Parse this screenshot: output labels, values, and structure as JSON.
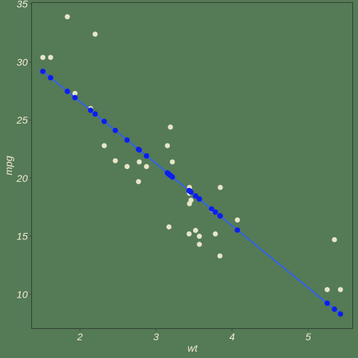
{
  "chart_data": {
    "type": "scatter",
    "title": "",
    "xlabel": "wt",
    "ylabel": "mpg",
    "xlim": [
      1.37,
      5.58
    ],
    "ylim": [
      7.08,
      35.1
    ],
    "xticks": [
      2,
      3,
      4,
      5
    ],
    "yticks": [
      10,
      15,
      20,
      25,
      30,
      35
    ],
    "grid": false,
    "legend": "none",
    "colors": {
      "background": "#557a56",
      "panel_border": "#2f3f2f",
      "observed": "#e8e6c8",
      "fitted": "#0a1ef0",
      "fit_line": "#2f62f0",
      "text": "#f2ecd6",
      "axis": "#3a4a3a"
    },
    "series": [
      {
        "kind": "observed",
        "points": [
          [
            2.62,
            21.0
          ],
          [
            2.875,
            21.0
          ],
          [
            2.32,
            22.8
          ],
          [
            3.215,
            21.4
          ],
          [
            3.44,
            18.7
          ],
          [
            3.46,
            18.1
          ],
          [
            3.57,
            14.3
          ],
          [
            3.19,
            24.4
          ],
          [
            3.15,
            22.8
          ],
          [
            3.44,
            19.2
          ],
          [
            3.44,
            17.8
          ],
          [
            4.07,
            16.4
          ],
          [
            3.73,
            17.3
          ],
          [
            3.78,
            15.2
          ],
          [
            5.25,
            10.4
          ],
          [
            5.424,
            10.4
          ],
          [
            5.345,
            14.7
          ],
          [
            2.2,
            32.4
          ],
          [
            1.615,
            30.4
          ],
          [
            1.835,
            33.9
          ],
          [
            2.465,
            21.5
          ],
          [
            3.52,
            15.5
          ],
          [
            3.435,
            15.2
          ],
          [
            3.84,
            13.3
          ],
          [
            3.845,
            19.2
          ],
          [
            1.935,
            27.3
          ],
          [
            2.14,
            26.0
          ],
          [
            1.513,
            30.4
          ],
          [
            3.17,
            15.8
          ],
          [
            2.77,
            19.7
          ],
          [
            3.57,
            15.0
          ],
          [
            2.78,
            21.4
          ]
        ]
      },
      {
        "kind": "fitted",
        "points": [
          [
            2.62,
            23.28
          ],
          [
            2.875,
            21.92
          ],
          [
            2.32,
            24.89
          ],
          [
            3.215,
            20.1
          ],
          [
            3.44,
            18.9
          ],
          [
            3.46,
            18.79
          ],
          [
            3.57,
            18.21
          ],
          [
            3.19,
            20.24
          ],
          [
            3.15,
            20.45
          ],
          [
            3.44,
            18.9
          ],
          [
            3.44,
            18.9
          ],
          [
            4.07,
            15.53
          ],
          [
            3.73,
            17.35
          ],
          [
            3.78,
            17.08
          ],
          [
            5.25,
            9.23
          ],
          [
            5.424,
            8.3
          ],
          [
            5.345,
            8.72
          ],
          [
            2.2,
            25.53
          ],
          [
            1.615,
            28.65
          ],
          [
            1.835,
            27.48
          ],
          [
            2.465,
            24.11
          ],
          [
            3.52,
            18.47
          ],
          [
            3.435,
            18.93
          ],
          [
            3.84,
            16.76
          ],
          [
            3.845,
            16.74
          ],
          [
            1.935,
            26.94
          ],
          [
            2.14,
            25.85
          ],
          [
            1.513,
            29.2
          ],
          [
            3.17,
            20.34
          ],
          [
            2.77,
            22.48
          ],
          [
            3.57,
            18.21
          ],
          [
            2.78,
            22.43
          ]
        ]
      }
    ],
    "fit_line": {
      "intercept": 37.285,
      "slope": -5.344
    }
  }
}
